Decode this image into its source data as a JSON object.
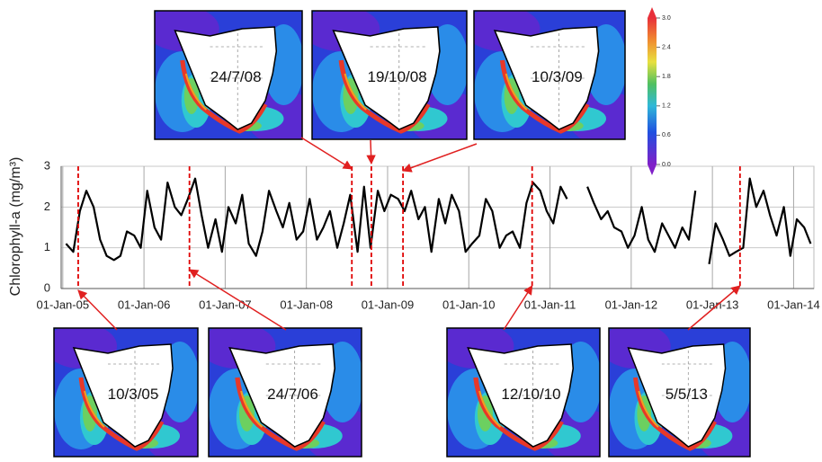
{
  "chart_data": {
    "type": "line",
    "y_label": "Chlorophyll-a (mg/m³)",
    "color": "#000000",
    "x": [
      2005.04,
      2005.13,
      2005.21,
      2005.29,
      2005.38,
      2005.46,
      2005.54,
      2005.63,
      2005.71,
      2005.79,
      2005.88,
      2005.96,
      2006.04,
      2006.13,
      2006.21,
      2006.29,
      2006.38,
      2006.46,
      2006.54,
      2006.63,
      2006.71,
      2006.79,
      2006.88,
      2006.96,
      2007.04,
      2007.13,
      2007.21,
      2007.29,
      2007.38,
      2007.46,
      2007.54,
      2007.63,
      2007.71,
      2007.79,
      2007.88,
      2007.96,
      2008.04,
      2008.13,
      2008.21,
      2008.29,
      2008.38,
      2008.46,
      2008.54,
      2008.63,
      2008.71,
      2008.79,
      2008.88,
      2008.96,
      2009.04,
      2009.13,
      2009.21,
      2009.29,
      2009.38,
      2009.46,
      2009.54,
      2009.63,
      2009.71,
      2009.79,
      2009.88,
      2009.96,
      2010.04,
      2010.13,
      2010.21,
      2010.29,
      2010.38,
      2010.46,
      2010.54,
      2010.63,
      2010.71,
      2010.79,
      2010.88,
      2010.96,
      2011.04,
      2011.13,
      2011.21,
      2011.29,
      2011.38,
      2011.46,
      2011.54,
      2011.63,
      2011.71,
      2011.79,
      2011.88,
      2011.96,
      2012.04,
      2012.13,
      2012.21,
      2012.29,
      2012.38,
      2012.46,
      2012.54,
      2012.63,
      2012.71,
      2012.79,
      2012.88,
      2012.96,
      2013.04,
      2013.13,
      2013.21,
      2013.29,
      2013.38,
      2013.46,
      2013.54,
      2013.63,
      2013.71,
      2013.79,
      2013.88,
      2013.96,
      2014.04,
      2014.13,
      2014.21
    ],
    "values": [
      1.1,
      0.9,
      1.9,
      2.4,
      2.0,
      1.2,
      0.8,
      0.7,
      0.8,
      1.4,
      1.3,
      1.0,
      2.4,
      1.5,
      1.2,
      2.6,
      2.0,
      1.8,
      2.2,
      2.7,
      1.8,
      1.0,
      1.7,
      0.9,
      2.0,
      1.6,
      2.3,
      1.1,
      0.8,
      1.4,
      2.4,
      1.9,
      1.5,
      2.1,
      1.2,
      1.4,
      2.2,
      1.2,
      1.5,
      1.9,
      1.0,
      1.6,
      2.3,
      0.9,
      2.5,
      1.0,
      2.4,
      1.9,
      2.3,
      2.2,
      1.9,
      2.4,
      1.7,
      2.0,
      0.9,
      2.2,
      1.6,
      2.3,
      1.9,
      0.9,
      1.1,
      1.3,
      2.2,
      1.9,
      1.0,
      1.3,
      1.4,
      1.0,
      2.1,
      2.6,
      2.4,
      1.9,
      1.6,
      2.5,
      2.2,
      null,
      null,
      2.5,
      2.1,
      1.7,
      1.9,
      1.5,
      1.4,
      1.0,
      1.3,
      2.0,
      1.2,
      0.9,
      1.6,
      1.3,
      1.0,
      1.5,
      1.2,
      2.4,
      null,
      0.6,
      1.6,
      1.2,
      0.8,
      0.9,
      1.0,
      2.7,
      2.0,
      2.4,
      1.8,
      1.3,
      2.0,
      0.8,
      1.7,
      1.5,
      1.1
    ],
    "xlim": [
      2004.98,
      2014.25
    ],
    "xticks": [
      {
        "value": 2005,
        "label": "01-Jan-05"
      },
      {
        "value": 2006,
        "label": "01-Jan-06"
      },
      {
        "value": 2007,
        "label": "01-Jan-07"
      },
      {
        "value": 2008,
        "label": "01-Jan-08"
      },
      {
        "value": 2009,
        "label": "01-Jan-09"
      },
      {
        "value": 2010,
        "label": "01-Jan-10"
      },
      {
        "value": 2011,
        "label": "01-Jan-11"
      },
      {
        "value": 2012,
        "label": "01-Jan-12"
      },
      {
        "value": 2013,
        "label": "01-Jan-13"
      },
      {
        "value": 2014,
        "label": "01-Jan-14"
      }
    ],
    "ylim": [
      0,
      3
    ],
    "yticks": [
      0,
      1,
      2,
      3
    ],
    "grid": true,
    "events": [
      {
        "x": 2005.19,
        "label": "10/3/05"
      },
      {
        "x": 2006.56,
        "label": "24/7/06"
      },
      {
        "x": 2008.56,
        "label": "24/7/08"
      },
      {
        "x": 2008.8,
        "label": "19/10/08"
      },
      {
        "x": 2009.19,
        "label": "10/3/09"
      },
      {
        "x": 2010.78,
        "label": "12/10/10"
      },
      {
        "x": 2013.34,
        "label": "5/5/13"
      }
    ],
    "event_color": "#e00000",
    "colorbar": {
      "lim": [
        0,
        3
      ],
      "ticks": [
        {
          "value": 3,
          "label": "3.0"
        },
        {
          "value": 2.4,
          "label": "2.4"
        },
        {
          "value": 1.8,
          "label": "1.8"
        },
        {
          "value": 1.2,
          "label": "1.2"
        },
        {
          "value": 0.6,
          "label": "0.6"
        },
        {
          "value": 0,
          "label": "0.0"
        }
      ]
    }
  }
}
